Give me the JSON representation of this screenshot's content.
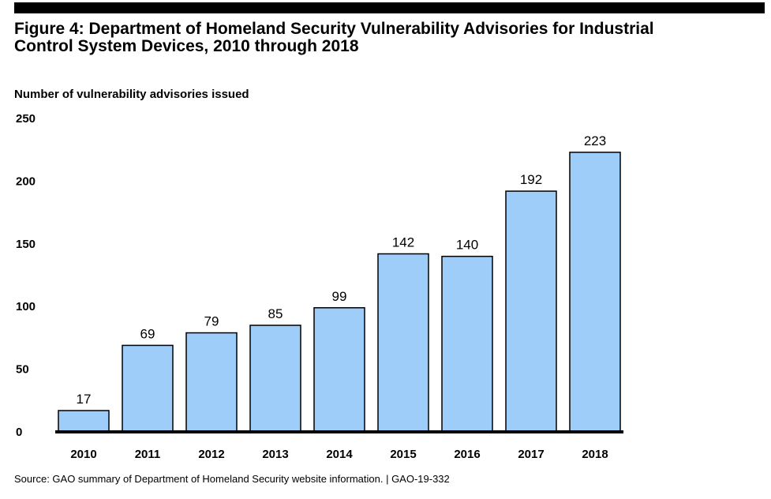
{
  "figure": {
    "title_line1": "Figure 4: Department of Homeland Security Vulnerability Advisories for Industrial",
    "title_line2": "Control System Devices, 2010 through 2018",
    "source": "Source: GAO summary of Department of Homeland Security website information.  |  GAO-19-332"
  },
  "chart_data": {
    "type": "bar",
    "title": "Figure 4: Department of Homeland Security Vulnerability Advisories for Industrial Control System Devices, 2010 through 2018",
    "xlabel": "",
    "ylabel": "Number of vulnerability advisories issued",
    "categories": [
      "2010",
      "2011",
      "2012",
      "2013",
      "2014",
      "2015",
      "2016",
      "2017",
      "2018"
    ],
    "values": [
      17,
      69,
      79,
      85,
      99,
      142,
      140,
      192,
      223
    ],
    "ylim": [
      0,
      250
    ],
    "yticks": [
      0,
      50,
      100,
      150,
      200,
      250
    ],
    "grid": false,
    "legend": "none",
    "bar_color": "#9fcdfa",
    "bar_edge_color": "#000000",
    "data_labels": true
  }
}
